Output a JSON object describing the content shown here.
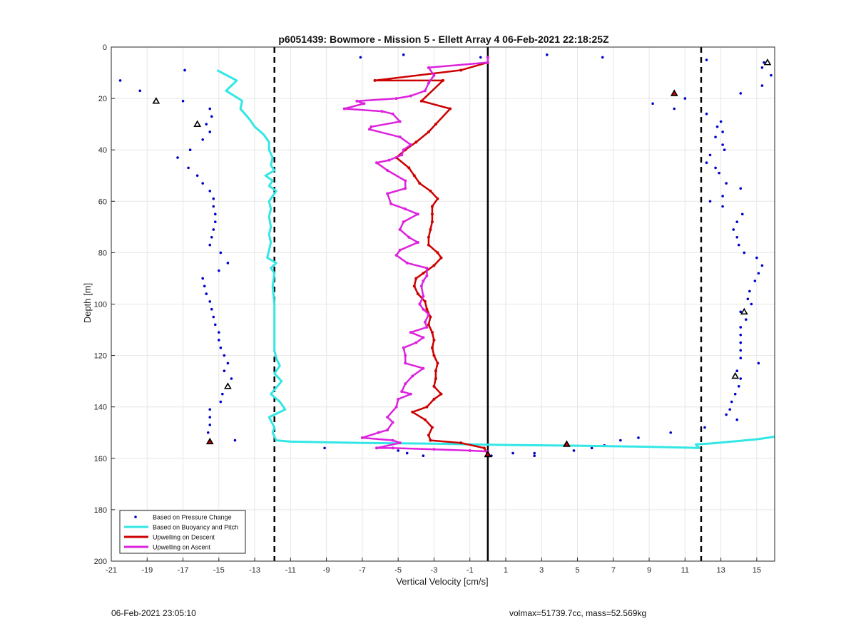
{
  "footer": {
    "timestamp": "06-Feb-2021 23:05:10",
    "summary": "volmax=51739.7cc, mass=52.569kg"
  },
  "chart_data": {
    "type": "line",
    "title": "p6051439: Bowmore - Mission 5 - Ellett Array 4 06-Feb-2021 22:18:25Z",
    "xlabel": "Vertical Velocity [cm/s]",
    "ylabel": "Depth [m]",
    "xlim": [
      -21,
      16
    ],
    "ylim": [
      0,
      200
    ],
    "y_reversed": true,
    "grid": true,
    "legend_position": "bottom-left",
    "xticks": [
      -21,
      -19,
      -17,
      -15,
      -13,
      -11,
      -9,
      -7,
      -5,
      -3,
      -1,
      1,
      3,
      5,
      7,
      9,
      11,
      13,
      15
    ],
    "yticks": [
      0,
      20,
      40,
      60,
      80,
      100,
      120,
      140,
      160,
      180,
      200
    ],
    "threshold_lines": [
      -11.9,
      11.9
    ],
    "zero_line": 0,
    "series": [
      {
        "name": "Based on Pressure Change",
        "style": "dots",
        "color": "#0000cc",
        "points": [
          [
            -20.5,
            13
          ],
          [
            -19.4,
            17
          ],
          [
            -16.9,
            9
          ],
          [
            -17,
            21
          ],
          [
            -15.5,
            24
          ],
          [
            -15.4,
            27
          ],
          [
            -15.7,
            30
          ],
          [
            -15.5,
            33
          ],
          [
            -15.9,
            36
          ],
          [
            -16.6,
            40
          ],
          [
            -17.3,
            43
          ],
          [
            -16.7,
            47
          ],
          [
            -16.2,
            50
          ],
          [
            -15.9,
            53
          ],
          [
            -15.5,
            56
          ],
          [
            -15.3,
            59
          ],
          [
            -15.3,
            62
          ],
          [
            -15.2,
            65
          ],
          [
            -15.2,
            68
          ],
          [
            -15.3,
            71
          ],
          [
            -15.4,
            74
          ],
          [
            -15.5,
            77
          ],
          [
            -14.9,
            80
          ],
          [
            -14.5,
            84
          ],
          [
            -15,
            87
          ],
          [
            -15.9,
            90
          ],
          [
            -15.8,
            93
          ],
          [
            -15.7,
            96
          ],
          [
            -15.5,
            99
          ],
          [
            -15.4,
            102
          ],
          [
            -15.3,
            105
          ],
          [
            -15.2,
            108
          ],
          [
            -15,
            111
          ],
          [
            -15,
            114
          ],
          [
            -14.9,
            117
          ],
          [
            -14.7,
            120
          ],
          [
            -14.5,
            123
          ],
          [
            -14.7,
            126
          ],
          [
            -14.3,
            129
          ],
          [
            -14.5,
            132
          ],
          [
            -14.8,
            135
          ],
          [
            -14.9,
            138
          ],
          [
            -15.5,
            141
          ],
          [
            -15.5,
            144
          ],
          [
            -15.5,
            147
          ],
          [
            -15.6,
            150
          ],
          [
            -14.1,
            153
          ],
          [
            -0.4,
            4
          ],
          [
            -7.1,
            4
          ],
          [
            -4.7,
            3
          ],
          [
            3.3,
            3
          ],
          [
            6.4,
            4
          ],
          [
            12.2,
            5
          ],
          [
            15.4,
            6
          ],
          [
            15.3,
            8
          ],
          [
            15.8,
            11
          ],
          [
            15.3,
            15
          ],
          [
            14.1,
            18
          ],
          [
            11,
            20
          ],
          [
            9.2,
            22
          ],
          [
            10.4,
            24
          ],
          [
            12.2,
            26
          ],
          [
            13,
            29
          ],
          [
            12.8,
            31
          ],
          [
            13.1,
            33
          ],
          [
            12.7,
            35
          ],
          [
            13.1,
            38
          ],
          [
            13.2,
            40
          ],
          [
            12.4,
            42
          ],
          [
            12.2,
            45
          ],
          [
            12.7,
            47
          ],
          [
            12.9,
            49
          ],
          [
            13.3,
            53
          ],
          [
            14.1,
            55
          ],
          [
            13.1,
            58
          ],
          [
            12.4,
            60
          ],
          [
            13.1,
            62
          ],
          [
            14.2,
            65
          ],
          [
            13.9,
            68
          ],
          [
            13.7,
            71
          ],
          [
            13.9,
            74
          ],
          [
            14,
            77
          ],
          [
            14.3,
            80
          ],
          [
            15,
            82
          ],
          [
            15.3,
            85
          ],
          [
            15.1,
            88
          ],
          [
            14.9,
            91
          ],
          [
            14.6,
            95
          ],
          [
            14.5,
            98
          ],
          [
            14.7,
            100
          ],
          [
            14.1,
            103
          ],
          [
            14.4,
            106
          ],
          [
            14.1,
            109
          ],
          [
            14.1,
            112
          ],
          [
            14.1,
            115
          ],
          [
            14.1,
            118
          ],
          [
            14.1,
            121
          ],
          [
            15.1,
            123
          ],
          [
            13.9,
            126
          ],
          [
            14.1,
            129
          ],
          [
            14,
            132
          ],
          [
            13.8,
            135
          ],
          [
            13.6,
            138
          ],
          [
            13.5,
            141
          ],
          [
            13.3,
            143
          ],
          [
            13.9,
            145
          ],
          [
            12.1,
            148
          ],
          [
            10.2,
            150
          ],
          [
            8.4,
            152
          ],
          [
            7.4,
            153
          ],
          [
            6.5,
            155
          ],
          [
            5.8,
            156
          ],
          [
            4.8,
            157
          ],
          [
            -5,
            157
          ],
          [
            -4.5,
            158
          ],
          [
            -3.6,
            159
          ],
          [
            -9.1,
            156
          ],
          [
            0.2,
            159
          ],
          [
            1.4,
            158
          ],
          [
            2.6,
            158
          ],
          [
            2.6,
            159
          ],
          [
            0,
            159
          ]
        ]
      },
      {
        "name": "Based on Buoyancy and Pitch",
        "style": "line",
        "color": "#33e6e6",
        "points": [
          [
            -15.1,
            9
          ],
          [
            -14,
            13
          ],
          [
            -14.6,
            17
          ],
          [
            -13.9,
            20
          ],
          [
            -13.7,
            21
          ],
          [
            -13.8,
            24
          ],
          [
            -13.3,
            28
          ],
          [
            -13,
            31
          ],
          [
            -12.5,
            34
          ],
          [
            -12.2,
            37
          ],
          [
            -12.2,
            40
          ],
          [
            -12,
            43
          ],
          [
            -12.1,
            46
          ],
          [
            -11.9,
            48
          ],
          [
            -12.4,
            50
          ],
          [
            -12,
            52
          ],
          [
            -12.2,
            54
          ],
          [
            -11.8,
            56
          ],
          [
            -12,
            58
          ],
          [
            -12.2,
            60
          ],
          [
            -12.1,
            63
          ],
          [
            -12.2,
            66
          ],
          [
            -12.1,
            70
          ],
          [
            -12.2,
            73
          ],
          [
            -12.1,
            76
          ],
          [
            -12.2,
            79
          ],
          [
            -12.3,
            82
          ],
          [
            -11.8,
            84
          ],
          [
            -12.1,
            86
          ],
          [
            -11.9,
            88
          ],
          [
            -12,
            93
          ],
          [
            -11.9,
            100
          ],
          [
            -11.9,
            110
          ],
          [
            -11.9,
            118
          ],
          [
            -11.8,
            121
          ],
          [
            -11.6,
            124
          ],
          [
            -11.9,
            127
          ],
          [
            -11.5,
            130
          ],
          [
            -12.1,
            135
          ],
          [
            -11.6,
            138
          ],
          [
            -11.3,
            141
          ],
          [
            -12.2,
            144
          ],
          [
            -11.9,
            148
          ],
          [
            -12,
            150
          ],
          [
            -11.8,
            153
          ],
          [
            -11,
            153.5
          ],
          [
            -7,
            154
          ],
          [
            -3,
            154.3
          ],
          [
            1,
            154.8
          ],
          [
            5,
            155.1
          ],
          [
            8,
            155.4
          ],
          [
            11,
            155.8
          ],
          [
            11.8,
            156
          ],
          [
            11.6,
            154.6
          ],
          [
            12.5,
            154.2
          ],
          [
            15,
            152.6
          ],
          [
            16,
            151.6
          ]
        ]
      },
      {
        "name": "Upwelling on Descent",
        "style": "line",
        "color": "#cc0000",
        "points": [
          [
            0,
            6
          ],
          [
            -1.5,
            9
          ],
          [
            -6.3,
            13
          ],
          [
            -2.5,
            13
          ],
          [
            -3.7,
            21
          ],
          [
            -2.1,
            24
          ],
          [
            -2.9,
            30
          ],
          [
            -3.3,
            33
          ],
          [
            -4,
            37
          ],
          [
            -4.6,
            40
          ],
          [
            -5.1,
            43
          ],
          [
            -4.4,
            47
          ],
          [
            -4.1,
            50
          ],
          [
            -3.8,
            53
          ],
          [
            -3.2,
            56
          ],
          [
            -2.8,
            59
          ],
          [
            -3.1,
            62
          ],
          [
            -3.1,
            65
          ],
          [
            -3.1,
            68
          ],
          [
            -3.2,
            71
          ],
          [
            -3.3,
            74
          ],
          [
            -3.3,
            77
          ],
          [
            -2.8,
            80
          ],
          [
            -2.6,
            82
          ],
          [
            -3,
            85
          ],
          [
            -3.6,
            88
          ],
          [
            -4,
            90
          ],
          [
            -4.1,
            93
          ],
          [
            -3.9,
            96
          ],
          [
            -3.5,
            99
          ],
          [
            -3.4,
            102
          ],
          [
            -3.2,
            105
          ],
          [
            -3.3,
            108
          ],
          [
            -3.1,
            111
          ],
          [
            -3,
            114
          ],
          [
            -3.1,
            117
          ],
          [
            -3,
            120
          ],
          [
            -2.8,
            123
          ],
          [
            -2.9,
            126
          ],
          [
            -2.9,
            129
          ],
          [
            -3,
            132
          ],
          [
            -2.6,
            135
          ],
          [
            -3,
            137
          ],
          [
            -3.4,
            140
          ],
          [
            -4.2,
            142
          ],
          [
            -3.5,
            145
          ],
          [
            -3.1,
            148
          ],
          [
            -3.3,
            151
          ],
          [
            -3.2,
            153
          ],
          [
            -1.5,
            154
          ],
          [
            -0.2,
            156
          ],
          [
            0,
            158.5
          ]
        ]
      },
      {
        "name": "Upwelling on Ascent",
        "style": "line",
        "color": "#dd22dd",
        "points": [
          [
            0,
            4
          ],
          [
            0,
            6
          ],
          [
            -3.3,
            8
          ],
          [
            -3,
            11
          ],
          [
            -3.3,
            14
          ],
          [
            -3.5,
            17
          ],
          [
            -4.3,
            19
          ],
          [
            -5.1,
            20
          ],
          [
            -7.3,
            21
          ],
          [
            -6.9,
            22
          ],
          [
            -8,
            24
          ],
          [
            -5.9,
            25
          ],
          [
            -5.3,
            26
          ],
          [
            -4.9,
            29
          ],
          [
            -6.5,
            31
          ],
          [
            -6.6,
            32
          ],
          [
            -4.9,
            35
          ],
          [
            -4.3,
            38
          ],
          [
            -4.7,
            40
          ],
          [
            -4.8,
            42
          ],
          [
            -5.5,
            44
          ],
          [
            -6.2,
            45
          ],
          [
            -5.6,
            48
          ],
          [
            -4.6,
            52
          ],
          [
            -4.6,
            55
          ],
          [
            -5.6,
            57
          ],
          [
            -5.4,
            61
          ],
          [
            -4.6,
            63
          ],
          [
            -3.9,
            65
          ],
          [
            -4.7,
            68
          ],
          [
            -4.9,
            71
          ],
          [
            -4.4,
            74
          ],
          [
            -3.9,
            76
          ],
          [
            -4.9,
            79
          ],
          [
            -5.1,
            81
          ],
          [
            -4.5,
            84
          ],
          [
            -3.4,
            86
          ],
          [
            -3.4,
            89
          ],
          [
            -3.6,
            91
          ],
          [
            -3.7,
            93
          ],
          [
            -3.6,
            97
          ],
          [
            -3.8,
            100
          ],
          [
            -3.6,
            102
          ],
          [
            -3.3,
            104
          ],
          [
            -3.5,
            107
          ],
          [
            -3.4,
            109
          ],
          [
            -4.3,
            111
          ],
          [
            -3.6,
            113
          ],
          [
            -4,
            115
          ],
          [
            -4.7,
            117
          ],
          [
            -4.6,
            120
          ],
          [
            -4.6,
            123
          ],
          [
            -3.6,
            125
          ],
          [
            -4.2,
            128
          ],
          [
            -4.6,
            131
          ],
          [
            -4.8,
            134
          ],
          [
            -4.3,
            135
          ],
          [
            -5,
            137
          ],
          [
            -5.1,
            140
          ],
          [
            -5.6,
            144
          ],
          [
            -5.3,
            146
          ],
          [
            -5.6,
            149
          ],
          [
            -6.1,
            150
          ],
          [
            -7,
            152
          ],
          [
            -5.3,
            153
          ],
          [
            -4.9,
            154
          ],
          [
            -6.2,
            156
          ],
          [
            -5.3,
            156
          ],
          [
            -3,
            156.5
          ],
          [
            -1,
            157
          ],
          [
            0,
            157.3
          ]
        ]
      },
      {
        "name": "",
        "style": "open-triangle",
        "color": "#000000",
        "points": [
          [
            -18.5,
            21
          ],
          [
            -16.2,
            30
          ],
          [
            -14.5,
            132
          ],
          [
            15.6,
            6
          ],
          [
            14.3,
            103
          ],
          [
            13.8,
            128
          ]
        ]
      },
      {
        "name": "",
        "style": "filled-triangle",
        "color": "#cc0000",
        "points": [
          [
            10.4,
            18
          ],
          [
            -15.5,
            153.5
          ],
          [
            4.4,
            154.5
          ],
          [
            0,
            158.5
          ]
        ]
      }
    ]
  }
}
